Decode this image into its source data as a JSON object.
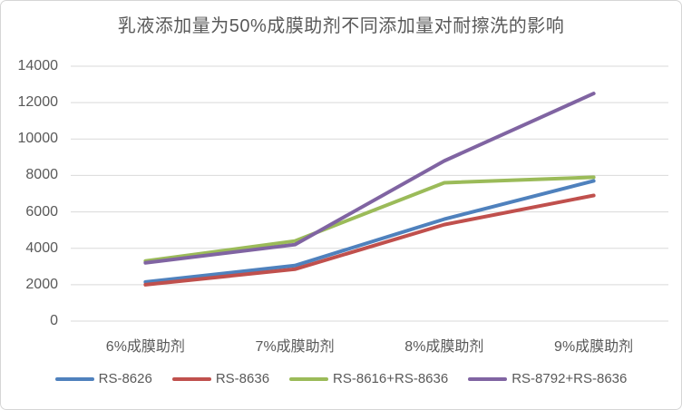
{
  "chart_data": {
    "type": "line",
    "title": "乳液添加量为50%成膜助剂不同添加量对耐擦洗的影响",
    "categories": [
      "6%成膜助剂",
      "7%成膜助剂",
      "8%成膜助剂",
      "9%成膜助剂"
    ],
    "series": [
      {
        "name": "RS-8626",
        "color": "#4F81BD",
        "values": [
          2150,
          3050,
          5600,
          7700
        ]
      },
      {
        "name": "RS-8636",
        "color": "#C0504D",
        "values": [
          2000,
          2850,
          5300,
          6900
        ]
      },
      {
        "name": "RS-8616+RS-8636",
        "color": "#9BBB59",
        "values": [
          3300,
          4400,
          7600,
          7900
        ]
      },
      {
        "name": "RS-8792+RS-8636",
        "color": "#8064A2",
        "values": [
          3200,
          4200,
          8800,
          12500
        ]
      }
    ],
    "xlabel": "",
    "ylabel": "",
    "ylim": [
      0,
      14000
    ],
    "y_ticks": [
      0,
      2000,
      4000,
      6000,
      8000,
      10000,
      12000,
      14000
    ],
    "grid": true,
    "legend_position": "bottom",
    "styles": {
      "gridline_color": "#D9D9D9",
      "text_color": "#595959",
      "background": "#FFFFFF",
      "border_color": "#D6D6D6",
      "line_width": 4
    }
  }
}
